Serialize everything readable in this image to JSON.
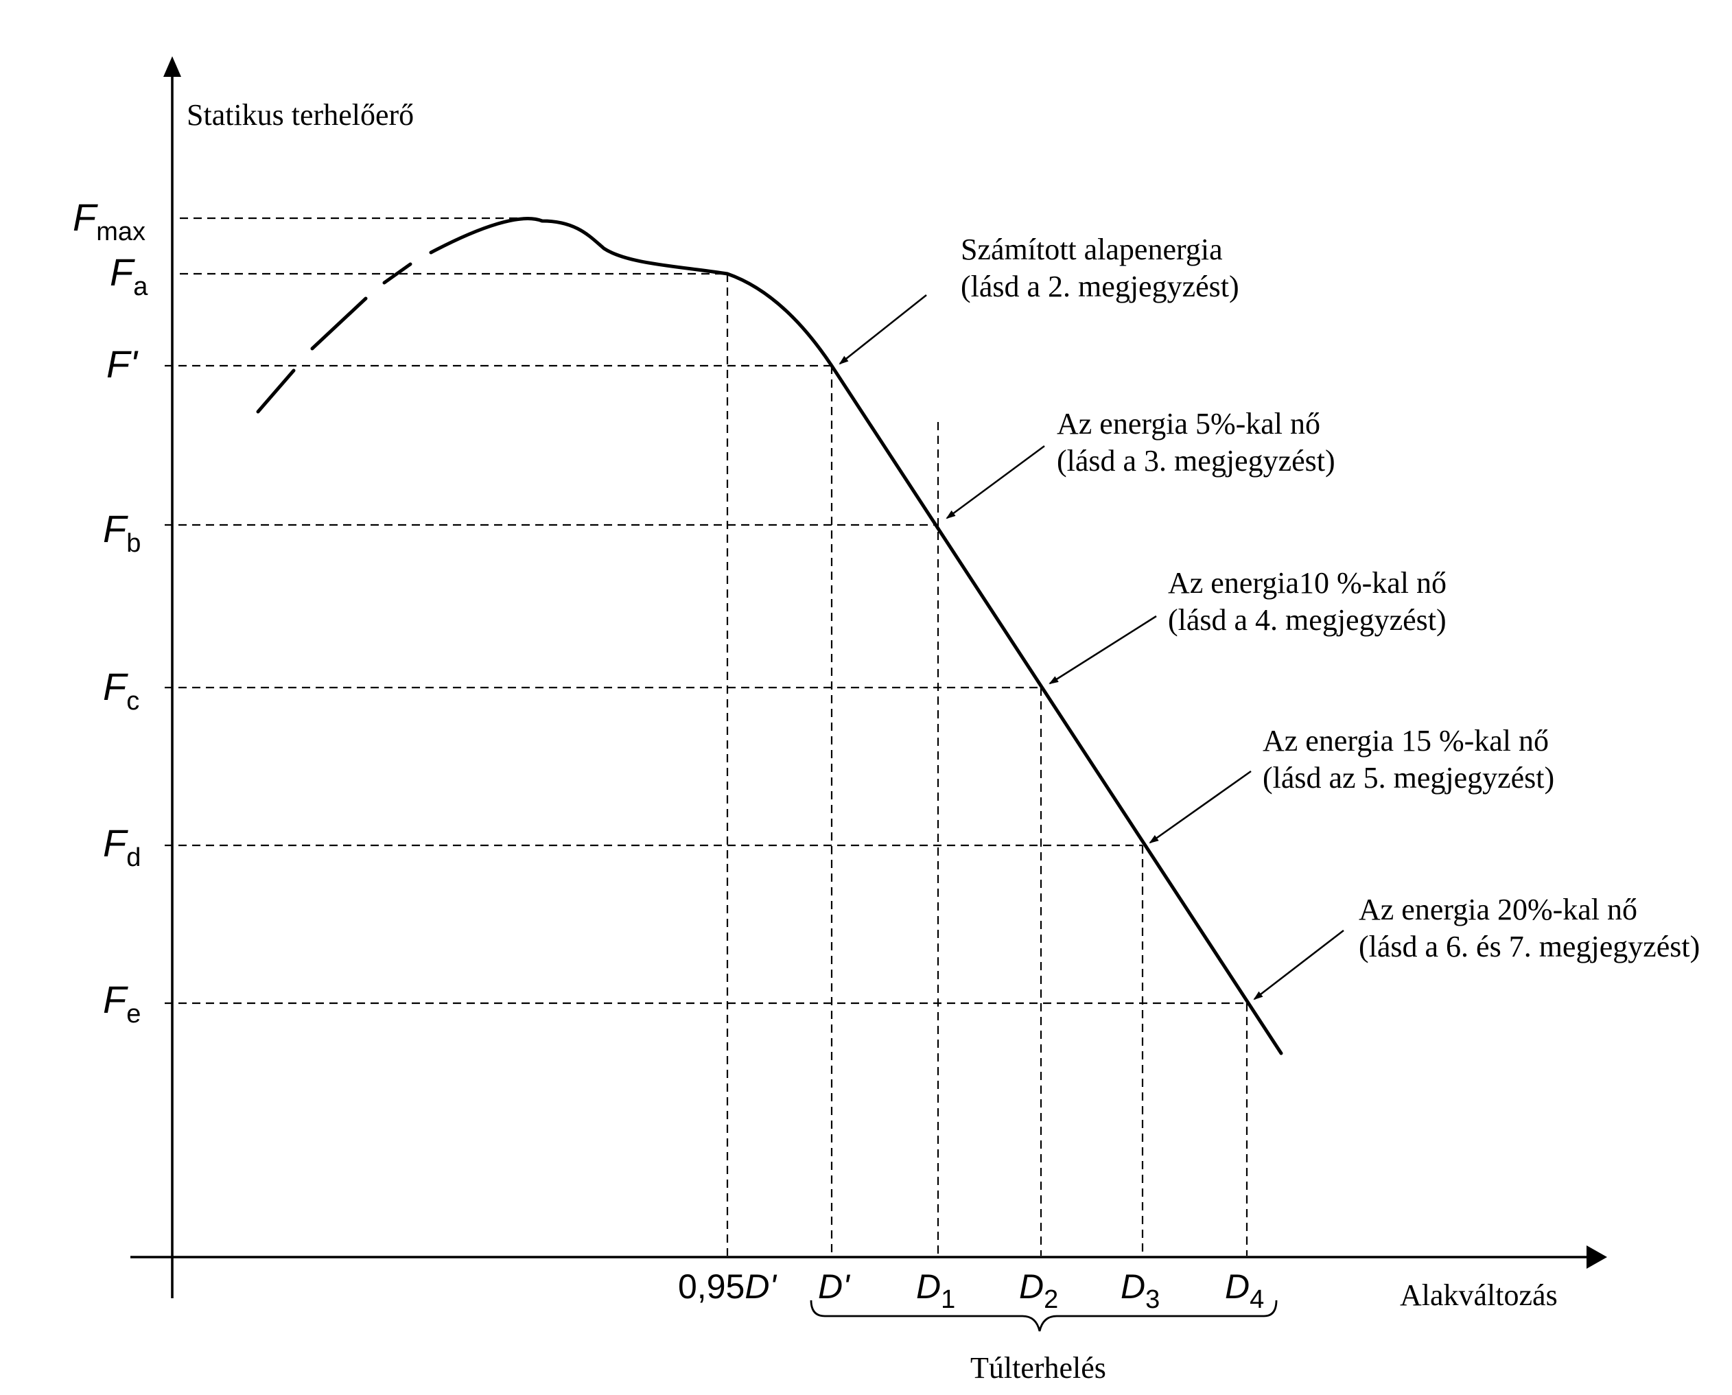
{
  "axes": {
    "y_label": "Statikus terhelőerő",
    "x_label": "Alakváltozás"
  },
  "force_levels": [
    {
      "id": "fmax",
      "main": "F",
      "sub": "max"
    },
    {
      "id": "fa",
      "main": "F",
      "sub": "a"
    },
    {
      "id": "fprime",
      "main": "F'",
      "sub": ""
    },
    {
      "id": "fb",
      "main": "F",
      "sub": "b"
    },
    {
      "id": "fc",
      "main": "F",
      "sub": "c"
    },
    {
      "id": "fd",
      "main": "F",
      "sub": "d"
    },
    {
      "id": "fe",
      "main": "F",
      "sub": "e"
    }
  ],
  "deformation_marks": [
    {
      "id": "d095",
      "prefix": "0,95",
      "main": "D'",
      "sub": ""
    },
    {
      "id": "dprime",
      "prefix": "",
      "main": "D'",
      "sub": ""
    },
    {
      "id": "d1",
      "prefix": "",
      "main": "D",
      "sub": "1"
    },
    {
      "id": "d2",
      "prefix": "",
      "main": "D",
      "sub": "2"
    },
    {
      "id": "d3",
      "prefix": "",
      "main": "D",
      "sub": "3"
    },
    {
      "id": "d4",
      "prefix": "",
      "main": "D",
      "sub": "4"
    }
  ],
  "annotations": [
    {
      "line1": "Számított alapenergia",
      "line2": "(lásd a 2. megjegyzést)"
    },
    {
      "line1": "Az energia 5%-kal nő",
      "line2": "(lásd a 3. megjegyzést)"
    },
    {
      "line1": "Az energia10 %-kal nő",
      "line2": "(lásd a 4. megjegyzést)"
    },
    {
      "line1": "Az energia 15 %-kal nő",
      "line2": "(lásd az 5. megjegyzést)"
    },
    {
      "line1": "Az energia 20%-kal nő",
      "line2": "(lásd a 6. és 7. megjegyzést)"
    }
  ],
  "overload_label": "Túlterhelés"
}
